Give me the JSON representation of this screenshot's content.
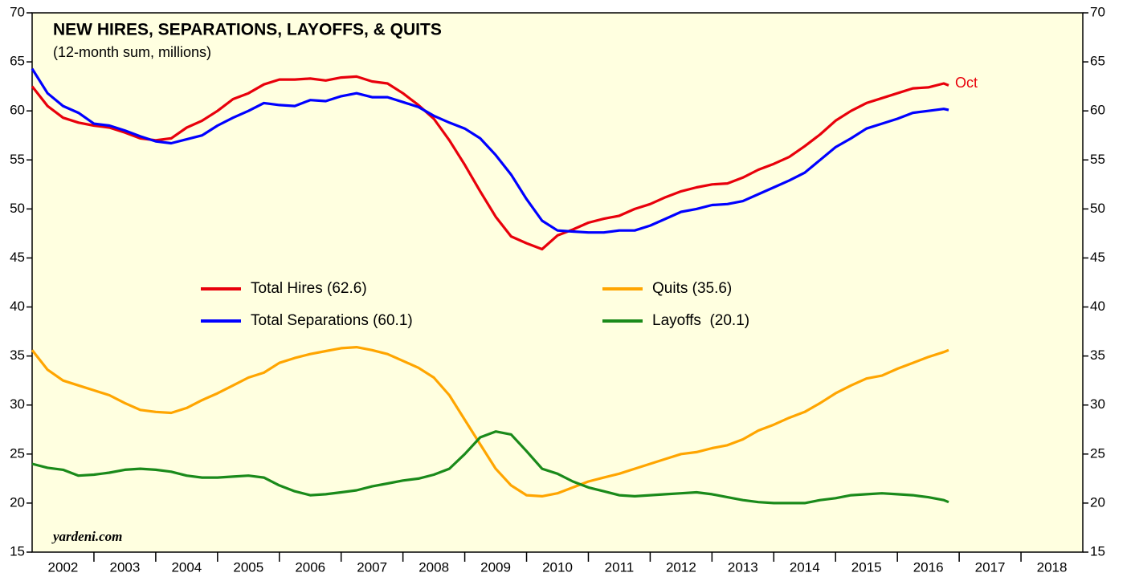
{
  "chart_data": {
    "type": "line",
    "title": "NEW HIRES, SEPARATIONS, LAYOFFS, & QUITS",
    "subtitle": "(12-month sum, millions)",
    "source": "yardeni.com",
    "annotation": "Oct",
    "categories": [
      "2002",
      "2003",
      "2004",
      "2005",
      "2006",
      "2007",
      "2008",
      "2009",
      "2010",
      "2011",
      "2012",
      "2013",
      "2014",
      "2015",
      "2016",
      "2017",
      "2018"
    ],
    "xlim": [
      2002,
      2019
    ],
    "ylim": [
      15,
      70
    ],
    "yticks": [
      15,
      20,
      25,
      30,
      35,
      40,
      45,
      50,
      55,
      60,
      65,
      70
    ],
    "y2lim": [
      15,
      70
    ],
    "y2ticks": [
      15,
      20,
      25,
      30,
      35,
      40,
      45,
      50,
      55,
      60,
      65,
      70
    ],
    "x": [
      2002,
      2002.25,
      2002.5,
      2002.75,
      2003,
      2003.25,
      2003.5,
      2003.75,
      2004,
      2004.25,
      2004.5,
      2004.75,
      2005,
      2005.25,
      2005.5,
      2005.75,
      2006,
      2006.25,
      2006.5,
      2006.75,
      2007,
      2007.25,
      2007.5,
      2007.75,
      2008,
      2008.25,
      2008.5,
      2008.75,
      2009,
      2009.25,
      2009.5,
      2009.75,
      2010,
      2010.25,
      2010.5,
      2010.75,
      2011,
      2011.25,
      2011.5,
      2011.75,
      2012,
      2012.25,
      2012.5,
      2012.75,
      2013,
      2013.25,
      2013.5,
      2013.75,
      2014,
      2014.25,
      2014.5,
      2014.75,
      2015,
      2015.25,
      2015.5,
      2015.75,
      2016,
      2016.25,
      2016.5,
      2016.75,
      2016.83
    ],
    "series": [
      {
        "name": "Total Hires (62.6)",
        "color": "#e8000b",
        "values": [
          62.5,
          60.5,
          59.3,
          58.8,
          58.5,
          58.3,
          57.8,
          57.2,
          57.0,
          57.2,
          58.3,
          59.0,
          60.0,
          61.2,
          61.8,
          62.7,
          63.2,
          63.2,
          63.3,
          63.1,
          63.4,
          63.5,
          63.0,
          62.8,
          61.8,
          60.6,
          59.2,
          57.0,
          54.5,
          51.8,
          49.2,
          47.2,
          46.5,
          45.9,
          47.3,
          47.9,
          48.6,
          49.0,
          49.3,
          50.0,
          50.5,
          51.2,
          51.8,
          52.2,
          52.5,
          52.6,
          53.2,
          54.0,
          54.6,
          55.3,
          56.4,
          57.6,
          59.0,
          60.0,
          60.8,
          61.3,
          61.8,
          62.3,
          62.4,
          62.8,
          62.6
        ]
      },
      {
        "name": "Total Separations (60.1)",
        "color": "#0000ff",
        "values": [
          64.3,
          61.8,
          60.5,
          59.8,
          58.7,
          58.5,
          58.0,
          57.4,
          56.9,
          56.7,
          57.1,
          57.5,
          58.5,
          59.3,
          60.0,
          60.8,
          60.6,
          60.5,
          61.1,
          61.0,
          61.5,
          61.8,
          61.4,
          61.4,
          60.9,
          60.4,
          59.5,
          58.8,
          58.2,
          57.2,
          55.5,
          53.5,
          51.0,
          48.8,
          47.8,
          47.7,
          47.6,
          47.6,
          47.8,
          47.8,
          48.3,
          49.0,
          49.7,
          50.0,
          50.4,
          50.5,
          50.8,
          51.5,
          52.2,
          52.9,
          53.7,
          55.0,
          56.3,
          57.2,
          58.2,
          58.7,
          59.2,
          59.8,
          60.0,
          60.2,
          60.1
        ]
      },
      {
        "name": "Quits (35.6)",
        "color": "#ffa500",
        "values": [
          35.6,
          33.6,
          32.5,
          32.0,
          31.5,
          31.0,
          30.2,
          29.5,
          29.3,
          29.2,
          29.7,
          30.5,
          31.2,
          32.0,
          32.8,
          33.3,
          34.3,
          34.8,
          35.2,
          35.5,
          35.8,
          35.9,
          35.6,
          35.2,
          34.5,
          33.8,
          32.8,
          31.0,
          28.5,
          26.0,
          23.5,
          21.8,
          20.8,
          20.7,
          21.0,
          21.6,
          22.2,
          22.6,
          23.0,
          23.5,
          24.0,
          24.5,
          25.0,
          25.2,
          25.6,
          25.9,
          26.5,
          27.4,
          28.0,
          28.7,
          29.3,
          30.2,
          31.2,
          32.0,
          32.7,
          33.0,
          33.7,
          34.3,
          34.9,
          35.4,
          35.6
        ]
      },
      {
        "name": "Layoffs  (20.1)",
        "color": "#1a8a1a",
        "values": [
          24.0,
          23.6,
          23.4,
          22.8,
          22.9,
          23.1,
          23.4,
          23.5,
          23.4,
          23.2,
          22.8,
          22.6,
          22.6,
          22.7,
          22.8,
          22.6,
          21.8,
          21.2,
          20.8,
          20.9,
          21.1,
          21.3,
          21.7,
          22.0,
          22.3,
          22.5,
          22.9,
          23.5,
          25.0,
          26.7,
          27.3,
          27.0,
          25.3,
          23.5,
          23.0,
          22.2,
          21.6,
          21.2,
          20.8,
          20.7,
          20.8,
          20.9,
          21.0,
          21.1,
          20.9,
          20.6,
          20.3,
          20.1,
          20.0,
          20.0,
          20.0,
          20.3,
          20.5,
          20.8,
          20.9,
          21.0,
          20.9,
          20.8,
          20.6,
          20.3,
          20.1
        ]
      }
    ]
  }
}
